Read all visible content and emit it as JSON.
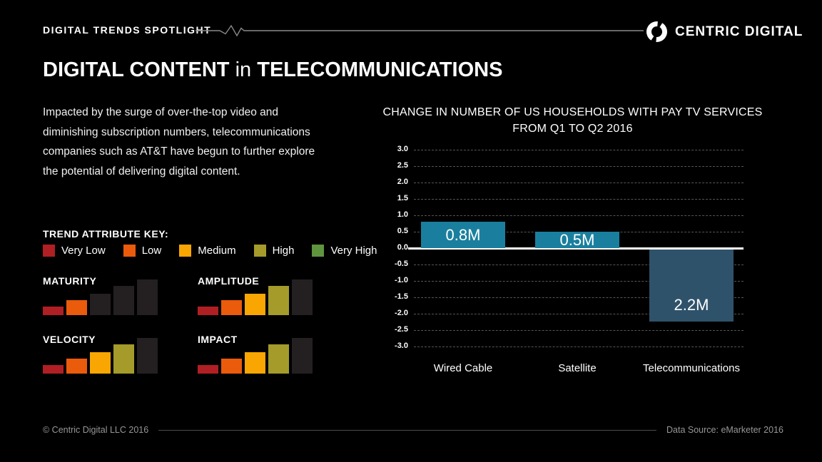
{
  "header": {
    "kicker": "DIGITAL TRENDS SPOTLIGHT",
    "brand": "CENTRIC DIGITAL"
  },
  "title": {
    "part1": "DIGITAL CONTENT",
    "part2": "in",
    "part3": "TELECOMMUNICATIONS"
  },
  "intro": "Impacted by the surge of over-the-top video and diminishing subscription numbers, telecommunications companies such as AT&T have begun to further explore the potential of delivering digital content.",
  "trend_key": {
    "title": "TREND ATTRIBUTE KEY:",
    "levels": [
      {
        "label": "Very Low",
        "color": "#b01f23"
      },
      {
        "label": "Low",
        "color": "#ea5b0c"
      },
      {
        "label": "Medium",
        "color": "#f9a602"
      },
      {
        "label": "High",
        "color": "#a49b2b"
      },
      {
        "label": "Very High",
        "color": "#5f953e"
      }
    ]
  },
  "attributes": [
    {
      "name": "MATURITY",
      "level": 2
    },
    {
      "name": "AMPLITUDE",
      "level": 4
    },
    {
      "name": "VELOCITY",
      "level": 4
    },
    {
      "name": "IMPACT",
      "level": 4
    }
  ],
  "chart_data": {
    "type": "bar",
    "title": "CHANGE IN NUMBER OF US HOUSEHOLDS WITH PAY TV SERVICES FROM Q1 TO Q2 2016",
    "title_lines": [
      "CHANGE IN NUMBER OF US HOUSEHOLDS WITH PAY TV SERVICES",
      "FROM Q1 TO Q2 2016"
    ],
    "categories": [
      "Wired Cable",
      "Satellite",
      "Telecommunications"
    ],
    "values": [
      0.8,
      0.5,
      -2.2
    ],
    "bar_labels": [
      "0.8M",
      "0.5M",
      "2.2M"
    ],
    "bar_colors": [
      "#1a7f9e",
      "#1a7f9e",
      "#2f526b"
    ],
    "ylim": [
      -3,
      3
    ],
    "ytick_step": 0.5,
    "grid": "dashed",
    "zero_line": true,
    "legend": "none"
  },
  "colors": {
    "background": "#000000",
    "inactive_bar": "#242021",
    "grid": "#565656",
    "zero_line": "#ffffff"
  },
  "footer": {
    "copyright": "© Centric Digital LLC 2016",
    "source": "Data Source: eMarketer 2016"
  }
}
